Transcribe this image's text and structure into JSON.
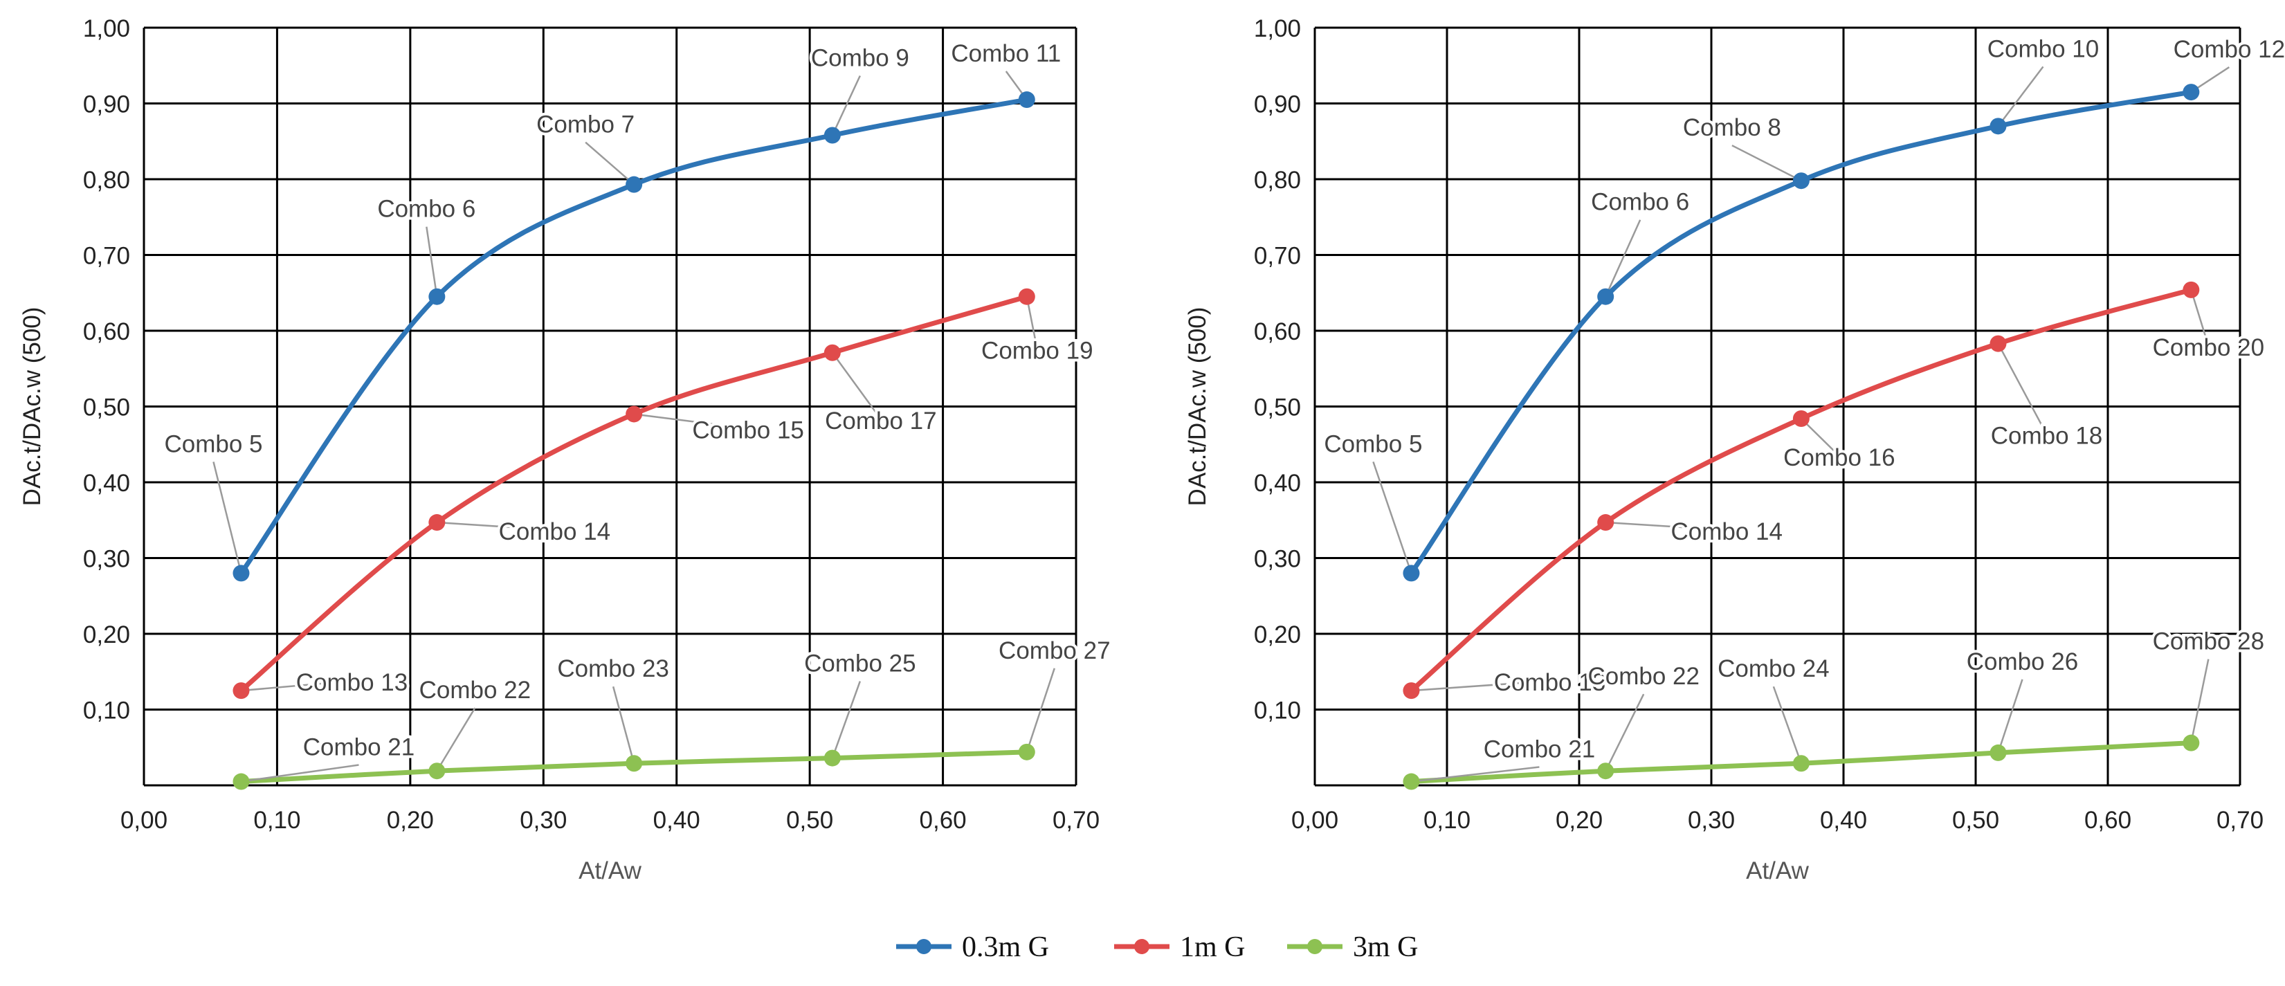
{
  "colors": {
    "series_1": "#2e75b6",
    "series_2": "#e04b4b",
    "series_3": "#8dc152",
    "grid": "#000000",
    "tick_text": "#222222",
    "axis_title": "#555555",
    "label_text": "#444444",
    "leader": "#9a9a9a"
  },
  "legend": {
    "items": [
      {
        "name": "0.3m G",
        "color": "#2e75b6"
      },
      {
        "name": "1m G",
        "color": "#e04b4b"
      },
      {
        "name": "3m G",
        "color": "#8dc152"
      }
    ]
  },
  "chart_data": [
    {
      "type": "line",
      "title": "",
      "xlabel": "At/Aw",
      "ylabel": "DAc.t/DAc.w  (500)",
      "xlim": [
        0,
        0.7
      ],
      "ylim": [
        0,
        1.0
      ],
      "x_ticks": [
        "0,00",
        "0,10",
        "0,20",
        "0,30",
        "0,40",
        "0,50",
        "0,60",
        "0,70"
      ],
      "y_ticks": [
        "",
        "0,10",
        "0,20",
        "0,30",
        "0,40",
        "0,50",
        "0,60",
        "0,70",
        "0,80",
        "0,90",
        "1,00"
      ],
      "grid": true,
      "legend_position": "bottom-center",
      "x": [
        0.073,
        0.22,
        0.368,
        0.517,
        0.663
      ],
      "series": [
        {
          "name": "0.3m G",
          "values": [
            0.28,
            0.645,
            0.793,
            0.858,
            0.905
          ],
          "labels": [
            "Combo 5",
            "Combo 6",
            "Combo 7",
            "Combo 9",
            "Combo 11"
          ]
        },
        {
          "name": "1m G",
          "values": [
            0.125,
            0.347,
            0.49,
            0.571,
            0.645
          ],
          "labels": [
            "Combo 13",
            "Combo 14",
            "Combo 15",
            "Combo 17",
            "Combo 19"
          ]
        },
        {
          "name": "3m G",
          "values": [
            0.005,
            0.019,
            0.029,
            0.036,
            0.044
          ],
          "labels": [
            "Combo 21",
            "Combo 22",
            "Combo 23",
            "Combo 25",
            "Combo 27"
          ]
        }
      ]
    },
    {
      "type": "line",
      "title": "",
      "xlabel": "At/Aw",
      "ylabel": "DAc.t/DAc.w  (500)",
      "xlim": [
        0,
        0.7
      ],
      "ylim": [
        0,
        1.0
      ],
      "x_ticks": [
        "0,00",
        "0,10",
        "0,20",
        "0,30",
        "0,40",
        "0,50",
        "0,60",
        "0,70"
      ],
      "y_ticks": [
        "",
        "0,10",
        "0,20",
        "0,30",
        "0,40",
        "0,50",
        "0,60",
        "0,70",
        "0,80",
        "0,90",
        "1,00"
      ],
      "grid": true,
      "legend_position": "bottom-center",
      "x": [
        0.073,
        0.22,
        0.368,
        0.517,
        0.663
      ],
      "series": [
        {
          "name": "0.3m G",
          "values": [
            0.28,
            0.645,
            0.798,
            0.87,
            0.915
          ],
          "labels": [
            "Combo 5",
            "Combo 6",
            "Combo 8",
            "Combo 10",
            "Combo 12"
          ]
        },
        {
          "name": "1m G",
          "values": [
            0.125,
            0.347,
            0.484,
            0.583,
            0.654
          ],
          "labels": [
            "Combo 13",
            "Combo 14",
            "Combo 16",
            "Combo 18",
            "Combo 20"
          ]
        },
        {
          "name": "3m G",
          "values": [
            0.005,
            0.019,
            0.029,
            0.043,
            0.056
          ],
          "labels": [
            "Combo 21",
            "Combo 22",
            "Combo 24",
            "Combo 26",
            "Combo 28"
          ]
        }
      ]
    }
  ]
}
